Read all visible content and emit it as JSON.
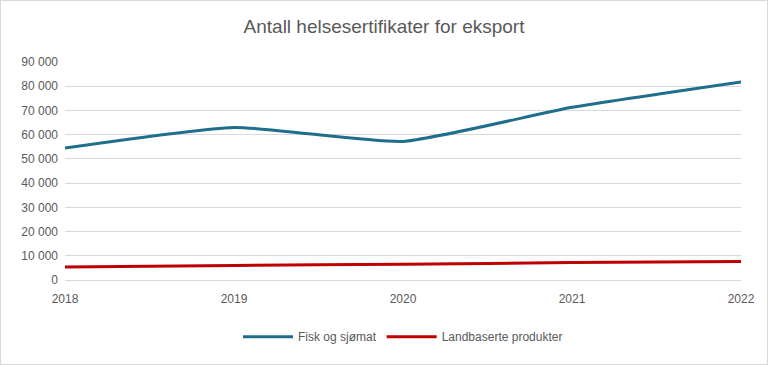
{
  "chart_data": {
    "type": "line",
    "title": "Antall helsesertifikater for eksport",
    "categories": [
      "2018",
      "2019",
      "2020",
      "2021",
      "2022"
    ],
    "series": [
      {
        "name": "Fisk og sjømat",
        "color": "#1f6e8c",
        "values": [
          54500,
          63000,
          57200,
          71300,
          81800
        ]
      },
      {
        "name": "Landbaserte produkter",
        "color": "#c00000",
        "values": [
          5400,
          6000,
          6500,
          7200,
          7600
        ]
      }
    ],
    "ylim": [
      0,
      90000
    ],
    "yticks": [
      0,
      {
        "value": 10000,
        "label": "10 000"
      },
      {
        "value": 20000,
        "label": "20 000"
      },
      {
        "value": 30000,
        "label": "30 000"
      },
      {
        "value": 40000,
        "label": "40 000"
      },
      {
        "value": 50000,
        "label": "50 000"
      },
      {
        "value": 60000,
        "label": "60 000"
      },
      {
        "value": 70000,
        "label": "70 000"
      },
      {
        "value": 80000,
        "label": "80 000"
      },
      {
        "value": 90000,
        "label": "90 000"
      }
    ],
    "grid": true,
    "legend": "bottom"
  }
}
